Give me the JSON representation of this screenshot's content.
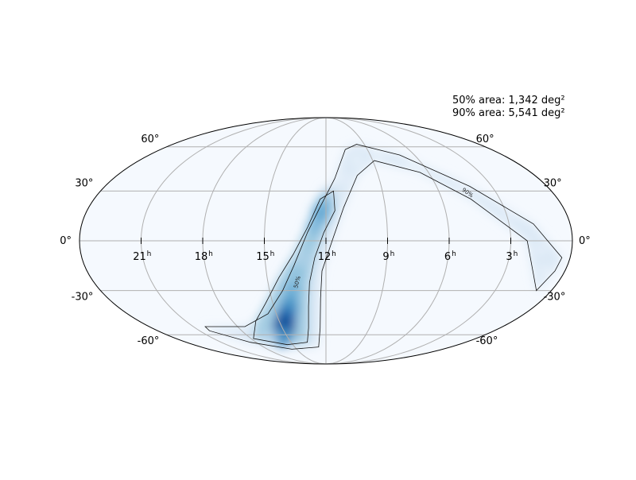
{
  "chart_data": {
    "type": "heatmap",
    "projection": "mollweide",
    "title": "",
    "colormap": "Blues",
    "annotations": [
      "50% area: 1,342 deg²",
      "90% area: 5,541 deg²"
    ],
    "ra_ticks": [
      {
        "ra_h": 21,
        "label": "21",
        "sup": "h"
      },
      {
        "ra_h": 18,
        "label": "18",
        "sup": "h"
      },
      {
        "ra_h": 15,
        "label": "15",
        "sup": "h"
      },
      {
        "ra_h": 12,
        "label": "12",
        "sup": "h"
      },
      {
        "ra_h": 9,
        "label": "9",
        "sup": "h"
      },
      {
        "ra_h": 6,
        "label": "6",
        "sup": "h"
      },
      {
        "ra_h": 3,
        "label": "3",
        "sup": "h"
      }
    ],
    "dec_ticks": [
      60,
      30,
      0,
      -30,
      -60
    ],
    "dec_tick_labels": {
      "60": "60°",
      "30": "30°",
      "0": "0°",
      "-30": "-30°",
      "-60": "-60°"
    },
    "grid": true,
    "contours": [
      {
        "level": 50,
        "label": "50%",
        "label_at": {
          "ra_h": 13.4,
          "dec": -25
        },
        "boundary": [
          {
            "ra_h": 11.6,
            "dec": 30
          },
          {
            "ra_h": 11.55,
            "dec": 18
          },
          {
            "ra_h": 12.1,
            "dec": 5
          },
          {
            "ra_h": 12.55,
            "dec": -10
          },
          {
            "ra_h": 12.85,
            "dec": -25
          },
          {
            "ra_h": 13.0,
            "dec": -40
          },
          {
            "ra_h": 13.2,
            "dec": -55
          },
          {
            "ra_h": 13.6,
            "dec": -66
          },
          {
            "ra_h": 15.5,
            "dec": -68
          },
          {
            "ra_h": 17.8,
            "dec": -63
          },
          {
            "ra_h": 16.5,
            "dec": -50
          },
          {
            "ra_h": 15.4,
            "dec": -38
          },
          {
            "ra_h": 14.4,
            "dec": -22
          },
          {
            "ra_h": 13.6,
            "dec": -8
          },
          {
            "ra_h": 12.9,
            "dec": 8
          },
          {
            "ra_h": 12.3,
            "dec": 25
          }
        ]
      },
      {
        "level": 90,
        "label": "90%",
        "label_at": {
          "ra_h": 4.6,
          "dec": 28
        },
        "boundary": [
          {
            "ra_h": 10.6,
            "dec": 58
          },
          {
            "ra_h": 9.6,
            "dec": 62
          },
          {
            "ra_h": 7.0,
            "dec": 54
          },
          {
            "ra_h": 4.2,
            "dec": 33
          },
          {
            "ra_h": 1.8,
            "dec": 10
          },
          {
            "ra_h": 0.4,
            "dec": -10
          },
          {
            "ra_h": 0.5,
            "dec": -18
          },
          {
            "ra_h": 0.8,
            "dec": -30
          },
          {
            "ra_h": 1.5,
            "dec": -20
          },
          {
            "ra_h": 2.2,
            "dec": 0
          },
          {
            "ra_h": 4.5,
            "dec": 25
          },
          {
            "ra_h": 6.5,
            "dec": 42
          },
          {
            "ra_h": 8.9,
            "dec": 50
          },
          {
            "ra_h": 10.2,
            "dec": 40
          },
          {
            "ra_h": 11.1,
            "dec": 20
          },
          {
            "ra_h": 11.7,
            "dec": 0
          },
          {
            "ra_h": 12.2,
            "dec": -18
          },
          {
            "ra_h": 12.3,
            "dec": -35
          },
          {
            "ra_h": 12.4,
            "dec": -55
          },
          {
            "ra_h": 12.7,
            "dec": -70
          },
          {
            "ra_h": 15.5,
            "dec": -72
          },
          {
            "ra_h": 18.5,
            "dec": -66
          },
          {
            "ra_h": 20.3,
            "dec": -57
          },
          {
            "ra_h": 20.2,
            "dec": -54
          },
          {
            "ra_h": 17.5,
            "dec": -54
          },
          {
            "ra_h": 15.5,
            "dec": -45
          },
          {
            "ra_h": 14.3,
            "dec": -30
          },
          {
            "ra_h": 13.6,
            "dec": -15
          },
          {
            "ra_h": 12.9,
            "dec": 5
          },
          {
            "ra_h": 12.3,
            "dec": 20
          },
          {
            "ra_h": 11.5,
            "dec": 38
          }
        ]
      }
    ],
    "probability_spine": [
      {
        "ra_h": 11.9,
        "dec": 28,
        "p": 0.35
      },
      {
        "ra_h": 12.1,
        "dec": 22,
        "p": 0.55
      },
      {
        "ra_h": 12.3,
        "dec": 16,
        "p": 0.65
      },
      {
        "ra_h": 12.6,
        "dec": 8,
        "p": 0.55
      },
      {
        "ra_h": 12.9,
        "dec": 0,
        "p": 0.45
      },
      {
        "ra_h": 13.2,
        "dec": -10,
        "p": 0.4
      },
      {
        "ra_h": 13.5,
        "dec": -20,
        "p": 0.5
      },
      {
        "ra_h": 13.8,
        "dec": -30,
        "p": 0.6
      },
      {
        "ra_h": 14.1,
        "dec": -40,
        "p": 0.75
      },
      {
        "ra_h": 14.5,
        "dec": -48,
        "p": 0.9
      },
      {
        "ra_h": 14.9,
        "dec": -55,
        "p": 1.0
      },
      {
        "ra_h": 15.4,
        "dec": -62,
        "p": 0.75
      },
      {
        "ra_h": 16.4,
        "dec": -63,
        "p": 0.35
      },
      {
        "ra_h": 18.0,
        "dec": -61,
        "p": 0.18
      },
      {
        "ra_h": 11.0,
        "dec": 38,
        "p": 0.08
      },
      {
        "ra_h": 10.0,
        "dec": 50,
        "p": 0.07
      },
      {
        "ra_h": 8.5,
        "dec": 55,
        "p": 0.07
      },
      {
        "ra_h": 6.5,
        "dec": 48,
        "p": 0.07
      },
      {
        "ra_h": 4.5,
        "dec": 33,
        "p": 0.08
      },
      {
        "ra_h": 2.8,
        "dec": 15,
        "p": 0.09
      },
      {
        "ra_h": 1.5,
        "dec": -5,
        "p": 0.08
      },
      {
        "ra_h": 1.0,
        "dec": -18,
        "p": 0.06
      }
    ]
  }
}
